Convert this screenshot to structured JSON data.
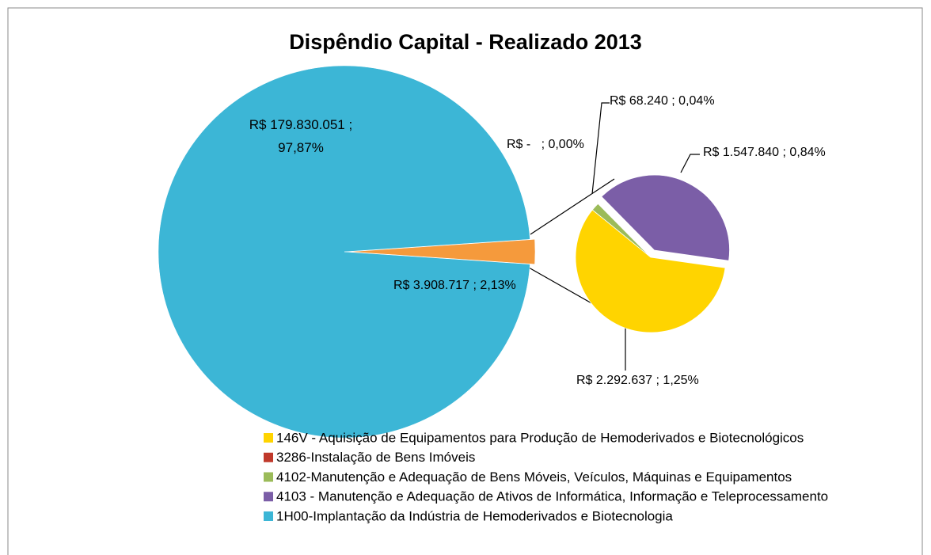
{
  "chart_data": {
    "type": "pie-of-pie",
    "title": "Dispêndio  Capital - Realizado 2013",
    "categories": [
      "146V - Aquisição de Equipamentos para Produção de Hemoderivados e Biotecnológicos",
      "3286-Instalação de Bens Imóveis",
      "4102-Manutenção e Adequação de Bens Móveis, Veículos, Máquinas e Equipamentos",
      "4103 - Manutenção e Adequação de Ativos de Informática, Informação e Teleprocessamento",
      "1H00-Implantação da Indústria de Hemoderivados e Biotecnologia"
    ],
    "values": [
      2292637,
      0,
      68240,
      1547840,
      179830051
    ],
    "value_labels": [
      "R$ 2.292.637 ; 1,25%",
      "R$ -   ; 0,00%",
      "R$ 68.240 ; 0,04%",
      "R$ 1.547.840 ; 0,84%",
      "R$ 179.830.051 ; 97,87%"
    ],
    "colors": [
      "#ffd400",
      "#c0392b",
      "#9bbb59",
      "#7b5ea7",
      "#3cb6d6"
    ],
    "other": {
      "value": 3908717,
      "label": "R$ 3.908.717 ; 2,13%",
      "color": "#f59a3c"
    },
    "legend": "bottom"
  }
}
